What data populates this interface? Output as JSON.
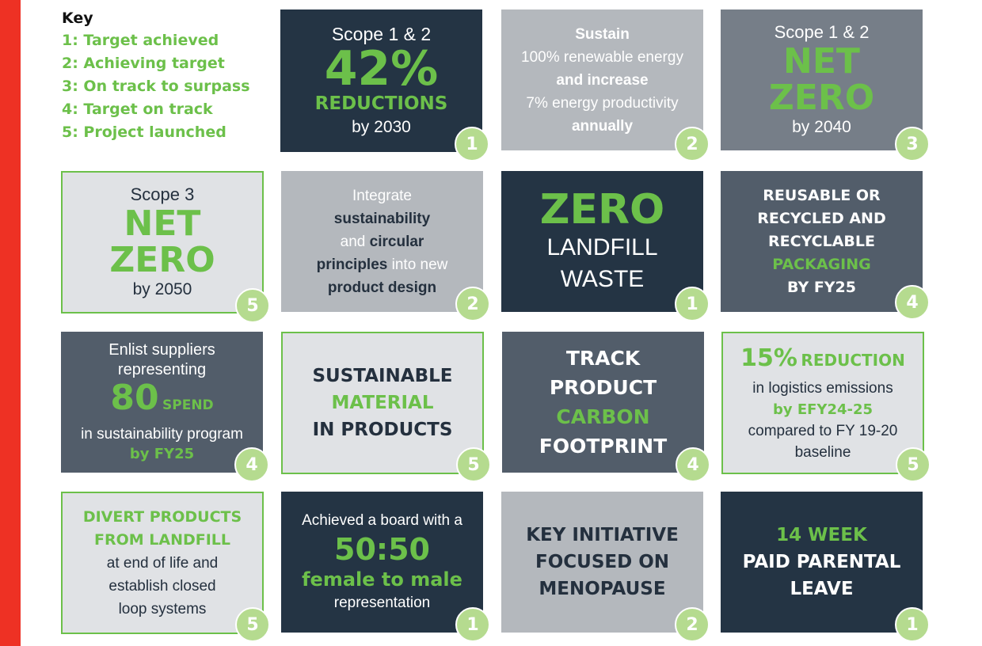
{
  "key": {
    "title": "Key",
    "items": [
      "1: Target achieved",
      "2: Achieving target",
      "3: On track to surpass",
      "4: Target on track",
      "5: Project launched"
    ]
  },
  "tiles": [
    {
      "lines": [
        "Scope 1 & 2",
        "42%",
        "REDUCTIONS",
        "by 2030"
      ],
      "badge": "1"
    },
    {
      "lines": [
        "Sustain",
        "100% renewable energy",
        "and increase",
        "7% energy productivity",
        "annually"
      ],
      "badge": "2"
    },
    {
      "lines": [
        "Scope 1 & 2",
        "NET",
        "ZERO",
        "by 2040"
      ],
      "badge": "3"
    },
    {
      "lines": [
        "Scope 3",
        "NET",
        "ZERO",
        "by 2050"
      ],
      "badge": "5"
    },
    {
      "lines": [
        "Integrate",
        "sustainability",
        "and",
        "circular",
        "principles",
        "into new",
        "product design"
      ],
      "badge": "2"
    },
    {
      "lines": [
        "ZERO",
        "LANDFILL",
        "WASTE"
      ],
      "badge": "1"
    },
    {
      "lines": [
        "REUSABLE OR",
        "RECYCLED AND",
        "RECYCLABLE",
        "PACKAGING",
        "BY FY25"
      ],
      "badge": "4"
    },
    {
      "lines": [
        "Enlist suppliers",
        "representing",
        "80",
        "SPEND",
        "in sustainability program",
        "by FY25"
      ],
      "badge": "4"
    },
    {
      "lines": [
        "SUSTAINABLE",
        "MATERIAL",
        "IN PRODUCTS"
      ],
      "badge": "5"
    },
    {
      "lines": [
        "TRACK",
        "PRODUCT",
        "CARBON",
        "FOOTPRINT"
      ],
      "badge": "4"
    },
    {
      "lines": [
        "15%",
        "REDUCTION",
        "in logistics emissions",
        "by EFY24-25",
        "compared to FY 19-20",
        "baseline"
      ],
      "badge": "5"
    },
    {
      "lines": [
        "DIVERT PRODUCTS",
        "FROM LANDFILL",
        "at end of life and",
        "establish closed",
        "loop systems"
      ],
      "badge": "5"
    },
    {
      "lines": [
        "Achieved a board with a",
        "50:50",
        "female to male",
        "representation"
      ],
      "badge": "1"
    },
    {
      "lines": [
        "KEY INITIATIVE",
        "FOCUSED ON",
        "MENOPAUSE"
      ],
      "badge": "2"
    },
    {
      "lines": [
        "14 WEEK",
        "PAID PARENTAL",
        "LEAVE"
      ],
      "badge": "1"
    }
  ]
}
